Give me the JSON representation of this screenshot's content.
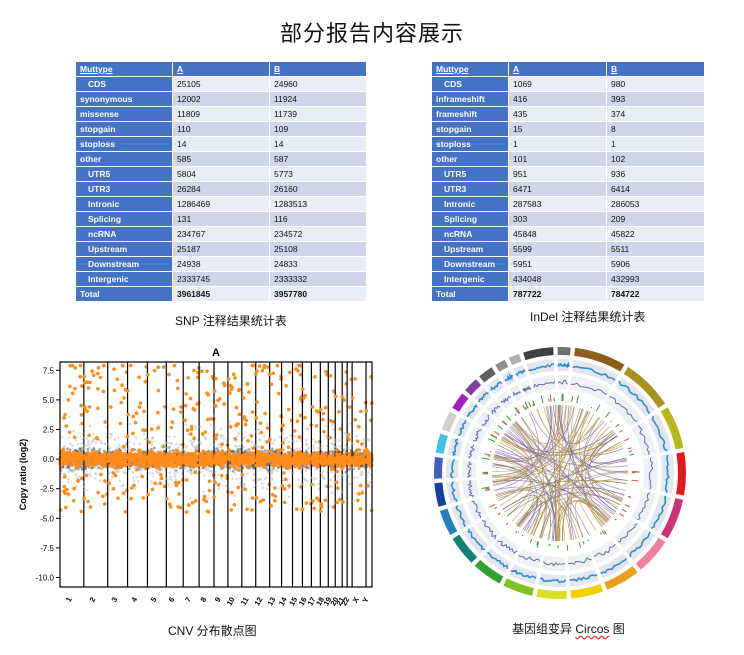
{
  "page_title": "部分报告内容展示",
  "snp_table": {
    "headers": [
      "Muttype",
      "A",
      "B"
    ],
    "rows": [
      {
        "label": "CDS",
        "indent": true,
        "a": "25105",
        "b": "24960"
      },
      {
        "label": "synonymous",
        "indent": false,
        "a": "12002",
        "b": "11924"
      },
      {
        "label": "missense",
        "indent": false,
        "a": "11809",
        "b": "11739"
      },
      {
        "label": "stopgain",
        "indent": false,
        "a": "110",
        "b": "109"
      },
      {
        "label": "stoploss",
        "indent": false,
        "a": "14",
        "b": "14"
      },
      {
        "label": "other",
        "indent": false,
        "a": "585",
        "b": "587"
      },
      {
        "label": "UTR5",
        "indent": true,
        "a": "5804",
        "b": "5773"
      },
      {
        "label": "UTR3",
        "indent": true,
        "a": "26284",
        "b": "26160"
      },
      {
        "label": "Intronic",
        "indent": true,
        "a": "1286469",
        "b": "1283513"
      },
      {
        "label": "Splicing",
        "indent": true,
        "a": "131",
        "b": "116"
      },
      {
        "label": "ncRNA",
        "indent": true,
        "a": "234767",
        "b": "234572"
      },
      {
        "label": "Upstream",
        "indent": true,
        "a": "25187",
        "b": "25108"
      },
      {
        "label": "Downstream",
        "indent": true,
        "a": "24938",
        "b": "24833"
      },
      {
        "label": "Intergenic",
        "indent": true,
        "a": "2333745",
        "b": "2333332"
      },
      {
        "label": "Total",
        "indent": false,
        "a": "3961845",
        "b": "3957780"
      }
    ],
    "caption": "SNP 注释结果统计表"
  },
  "indel_table": {
    "headers": [
      "Muttype",
      "A",
      "B"
    ],
    "rows": [
      {
        "label": "CDS",
        "indent": true,
        "a": "1069",
        "b": "980"
      },
      {
        "label": "inframeshift",
        "indent": false,
        "a": "416",
        "b": "393"
      },
      {
        "label": "frameshift",
        "indent": false,
        "a": "435",
        "b": "374"
      },
      {
        "label": "stopgain",
        "indent": false,
        "a": "15",
        "b": "8"
      },
      {
        "label": "stoploss",
        "indent": false,
        "a": "1",
        "b": "1"
      },
      {
        "label": "other",
        "indent": false,
        "a": "101",
        "b": "102"
      },
      {
        "label": "UTR5",
        "indent": true,
        "a": "951",
        "b": "936"
      },
      {
        "label": "UTR3",
        "indent": true,
        "a": "6471",
        "b": "6414"
      },
      {
        "label": "Intronic",
        "indent": true,
        "a": "287583",
        "b": "286053"
      },
      {
        "label": "Splicing",
        "indent": true,
        "a": "303",
        "b": "209"
      },
      {
        "label": "ncRNA",
        "indent": true,
        "a": "45848",
        "b": "45822"
      },
      {
        "label": "Upstream",
        "indent": true,
        "a": "5599",
        "b": "5511"
      },
      {
        "label": "Downstream",
        "indent": true,
        "a": "5951",
        "b": "5906"
      },
      {
        "label": "Intergenic",
        "indent": true,
        "a": "434048",
        "b": "432993"
      },
      {
        "label": "Total",
        "indent": false,
        "a": "787722",
        "b": "784722"
      }
    ],
    "caption": "InDel 注释结果统计表"
  },
  "chart_data": {
    "type": "scatter",
    "title": "A",
    "ylabel": "Copy ratio (log2)",
    "ylim": [
      -10.8,
      8.2
    ],
    "yticks": [
      7.5,
      5.0,
      2.5,
      0.0,
      -2.5,
      -5.0,
      -7.5,
      -10.0
    ],
    "categories": [
      "1",
      "2",
      "3",
      "4",
      "5",
      "6",
      "7",
      "8",
      "9",
      "10",
      "11",
      "12",
      "13",
      "14",
      "15",
      "16",
      "17",
      "18",
      "19",
      "20",
      "21",
      "22",
      "X",
      "Y"
    ],
    "series": [
      {
        "color": "#888888"
      },
      {
        "color": "#ff8c1a"
      }
    ],
    "caption": "CNV 分布散点图"
  },
  "circos": {
    "caption_prefix": "基因组变异",
    "caption_word": "Circos",
    "caption_suffix": "图",
    "chrom_colors": [
      "#8c5e1e",
      "#a8921e",
      "#b8b81a",
      "#e31a1c",
      "#cc3377",
      "#f07fa0",
      "#e8a020",
      "#f0d000",
      "#d8e020",
      "#80c020",
      "#30a030",
      "#108070",
      "#2080c0",
      "#1040a0",
      "#4060c0",
      "#40c0e0",
      "#d0d0d0",
      "#a020c0",
      "#8040a0",
      "#606060",
      "#909090",
      "#b0b0b0",
      "#404040",
      "#707070"
    ]
  }
}
